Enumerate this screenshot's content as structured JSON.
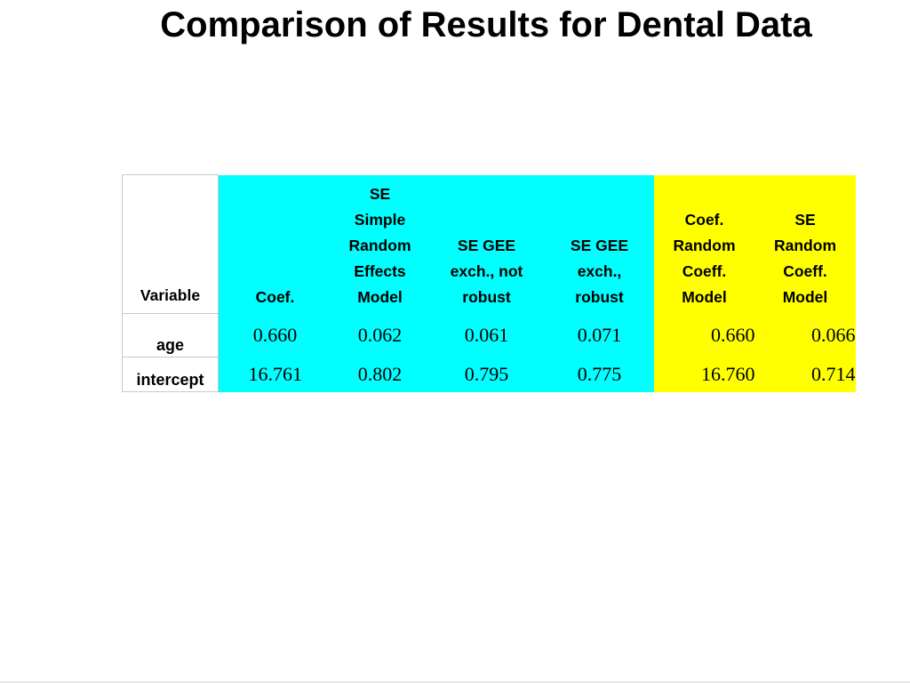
{
  "title": "Comparison of Results for Dental Data",
  "table": {
    "headers": [
      "Variable",
      "Coef.",
      "SE Simple Random Effects Model",
      "SE GEE exch., not robust",
      "SE GEE exch., robust",
      "Coef. Random Coeff. Model",
      "SE Random Coeff. Model"
    ],
    "header_lines": [
      [
        "Variable"
      ],
      [
        "Coef."
      ],
      [
        "SE",
        "Simple",
        "Random",
        "Effects",
        "Model"
      ],
      [
        "SE GEE",
        "exch., not",
        "robust"
      ],
      [
        "SE GEE",
        "exch.,",
        "robust"
      ],
      [
        "Coef.",
        "Random",
        "Coeff.",
        "Model"
      ],
      [
        "SE",
        "Random",
        "Coeff.",
        "Model"
      ]
    ],
    "rows": [
      {
        "variable": "age",
        "values": [
          "0.660",
          "0.062",
          "0.061",
          "0.071",
          "0.660",
          "0.066"
        ]
      },
      {
        "variable": "intercept",
        "values": [
          "16.761",
          "0.802",
          "0.795",
          "0.775",
          "16.760",
          "0.714"
        ]
      }
    ]
  },
  "colors": {
    "group1_highlight": "#00ffff",
    "group2_highlight": "#ffff00"
  }
}
